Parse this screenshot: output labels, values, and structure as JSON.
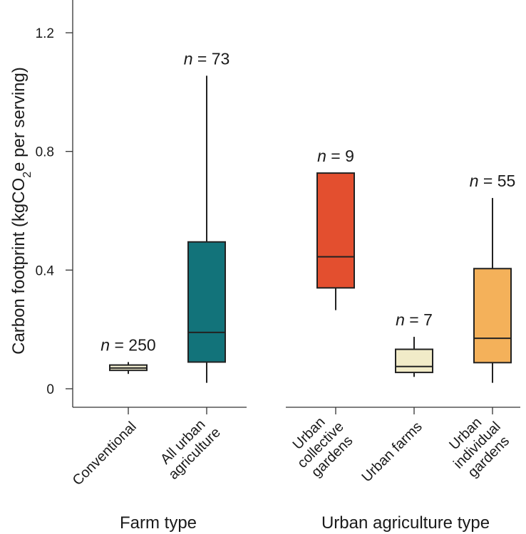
{
  "chart_data": {
    "type": "boxplot",
    "ylabel_main": "Carbon footprint (kgCO",
    "ylabel_sub": "2",
    "ylabel_tail": "e per serving)",
    "ylim": [
      0,
      1.3
    ],
    "yticks": [
      {
        "value": 0,
        "label": "0"
      },
      {
        "value": 0.4,
        "label": "0.4"
      },
      {
        "value": 0.8,
        "label": "0.8"
      },
      {
        "value": 1.2,
        "label": "1.2"
      }
    ],
    "groups": [
      {
        "title": "Farm type",
        "categories": [
          {
            "label_lines": [
              "Conventional"
            ],
            "n_prefix": "n",
            "n_text": " = 250",
            "color": "#f4f0d2",
            "min": 0.05,
            "q1": 0.062,
            "median": 0.07,
            "q3": 0.08,
            "max": 0.09
          },
          {
            "label_lines": [
              "All urban",
              "agriculture"
            ],
            "n_prefix": "n",
            "n_text": " = 73",
            "color": "#12737a",
            "min": 0.02,
            "q1": 0.09,
            "median": 0.19,
            "q3": 0.495,
            "max": 1.055
          }
        ]
      },
      {
        "title": "Urban agriculture type",
        "categories": [
          {
            "label_lines": [
              "Urban",
              "collective",
              "gardens"
            ],
            "n_prefix": "n",
            "n_text": " = 9",
            "color": "#e34f2f",
            "min": 0.265,
            "q1": 0.34,
            "median": 0.445,
            "q3": 0.727,
            "max": 0.727
          },
          {
            "label_lines": [
              "Urban farms"
            ],
            "n_prefix": "n",
            "n_text": " = 7",
            "color": "#f1ebc8",
            "min": 0.04,
            "q1": 0.055,
            "median": 0.075,
            "q3": 0.133,
            "max": 0.175
          },
          {
            "label_lines": [
              "Urban",
              "individual",
              "gardens"
            ],
            "n_prefix": "n",
            "n_text": " = 55",
            "color": "#f4b15a",
            "min": 0.02,
            "q1": 0.088,
            "median": 0.17,
            "q3": 0.405,
            "max": 0.643
          }
        ]
      }
    ]
  }
}
